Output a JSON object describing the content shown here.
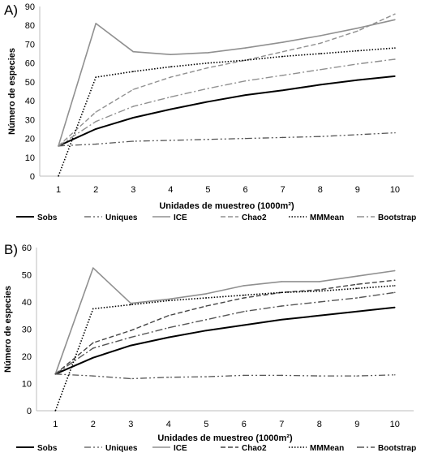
{
  "chart_data": [
    {
      "panel": "A)",
      "type": "line",
      "xlabel": "Unidades de muestreo (1000m²)",
      "ylabel": "Número de especies",
      "x": [
        1,
        2,
        3,
        4,
        5,
        6,
        7,
        8,
        9,
        10
      ],
      "xticks": [
        "1",
        "2",
        "3",
        "4",
        "5",
        "6",
        "7",
        "8",
        "9",
        "10"
      ],
      "ylim": [
        0,
        90
      ],
      "yticks": [
        0,
        10,
        20,
        30,
        40,
        50,
        60,
        70,
        80,
        90
      ],
      "legend_position": "bottom",
      "series": [
        {
          "name": "Sobs",
          "color": "#000000",
          "dash": "solid",
          "width": 2.0,
          "values": [
            16,
            25,
            31,
            35.5,
            39.5,
            43,
            45.5,
            48.5,
            51,
            53
          ]
        },
        {
          "name": "Uniques",
          "color": "#555555",
          "dash": "dashdotdot",
          "width": 1.3,
          "values": [
            16,
            17,
            18.5,
            19,
            19.5,
            20,
            20.5,
            21,
            22,
            23
          ]
        },
        {
          "name": "ICE",
          "color": "#909090",
          "dash": "solid",
          "width": 1.6,
          "values": [
            16,
            81,
            66,
            64.5,
            65.5,
            68,
            71,
            74.5,
            78.5,
            83
          ]
        },
        {
          "name": "Chao2",
          "color": "#909090",
          "dash": "dashed",
          "width": 1.4,
          "values": [
            16,
            34,
            46,
            52.5,
            57.5,
            61.5,
            66,
            70.5,
            77,
            86
          ]
        },
        {
          "name": "MMMean",
          "color": "#000000",
          "dash": "dotted",
          "width": 1.6,
          "values": [
            0,
            52.5,
            55.5,
            58,
            60,
            61.5,
            63.5,
            65,
            66.5,
            68
          ]
        },
        {
          "name": "Bootstrap",
          "color": "#909090",
          "dash": "dashdot",
          "width": 1.4,
          "values": [
            16,
            29,
            37,
            42,
            46.5,
            50.5,
            53.5,
            56.5,
            59.5,
            62
          ]
        }
      ]
    },
    {
      "panel": "B)",
      "type": "line",
      "xlabel": "Unidades de muestreo (1000m²)",
      "ylabel": "Número de especies",
      "x": [
        1,
        2,
        3,
        4,
        5,
        6,
        7,
        8,
        9,
        10
      ],
      "xticks": [
        "1",
        "2",
        "3",
        "4",
        "5",
        "6",
        "7",
        "8",
        "9",
        "10"
      ],
      "ylim": [
        0,
        60
      ],
      "yticks": [
        0,
        10,
        20,
        30,
        40,
        50,
        60
      ],
      "legend_position": "bottom",
      "series": [
        {
          "name": "Sobs",
          "color": "#000000",
          "dash": "solid",
          "width": 2.0,
          "values": [
            13.5,
            19.5,
            24,
            27,
            29.5,
            31.5,
            33.5,
            35,
            36.5,
            38
          ]
        },
        {
          "name": "Uniques",
          "color": "#555555",
          "dash": "dashdotdot",
          "width": 1.3,
          "values": [
            13.5,
            12.8,
            11.8,
            12.3,
            12.5,
            13,
            13,
            12.8,
            12.8,
            13.2
          ]
        },
        {
          "name": "ICE",
          "color": "#909090",
          "dash": "solid",
          "width": 1.6,
          "values": [
            13.5,
            52.5,
            39.5,
            41,
            43,
            46,
            47.5,
            47.5,
            49.5,
            51.5
          ]
        },
        {
          "name": "Chao2",
          "color": "#444444",
          "dash": "dashed",
          "width": 1.4,
          "values": [
            13.5,
            25,
            29.5,
            35,
            38.5,
            41.5,
            43.5,
            44.5,
            46.5,
            48
          ]
        },
        {
          "name": "MMMean",
          "color": "#000000",
          "dash": "dotted",
          "width": 1.6,
          "values": [
            0,
            37.5,
            39,
            40.5,
            41.5,
            42.5,
            43.5,
            44,
            45,
            46
          ]
        },
        {
          "name": "Bootstrap",
          "color": "#555555",
          "dash": "dashdot",
          "width": 1.4,
          "values": [
            13.5,
            23,
            27,
            30.5,
            33.5,
            36.5,
            38.5,
            40,
            41.5,
            43.5
          ]
        }
      ]
    }
  ]
}
